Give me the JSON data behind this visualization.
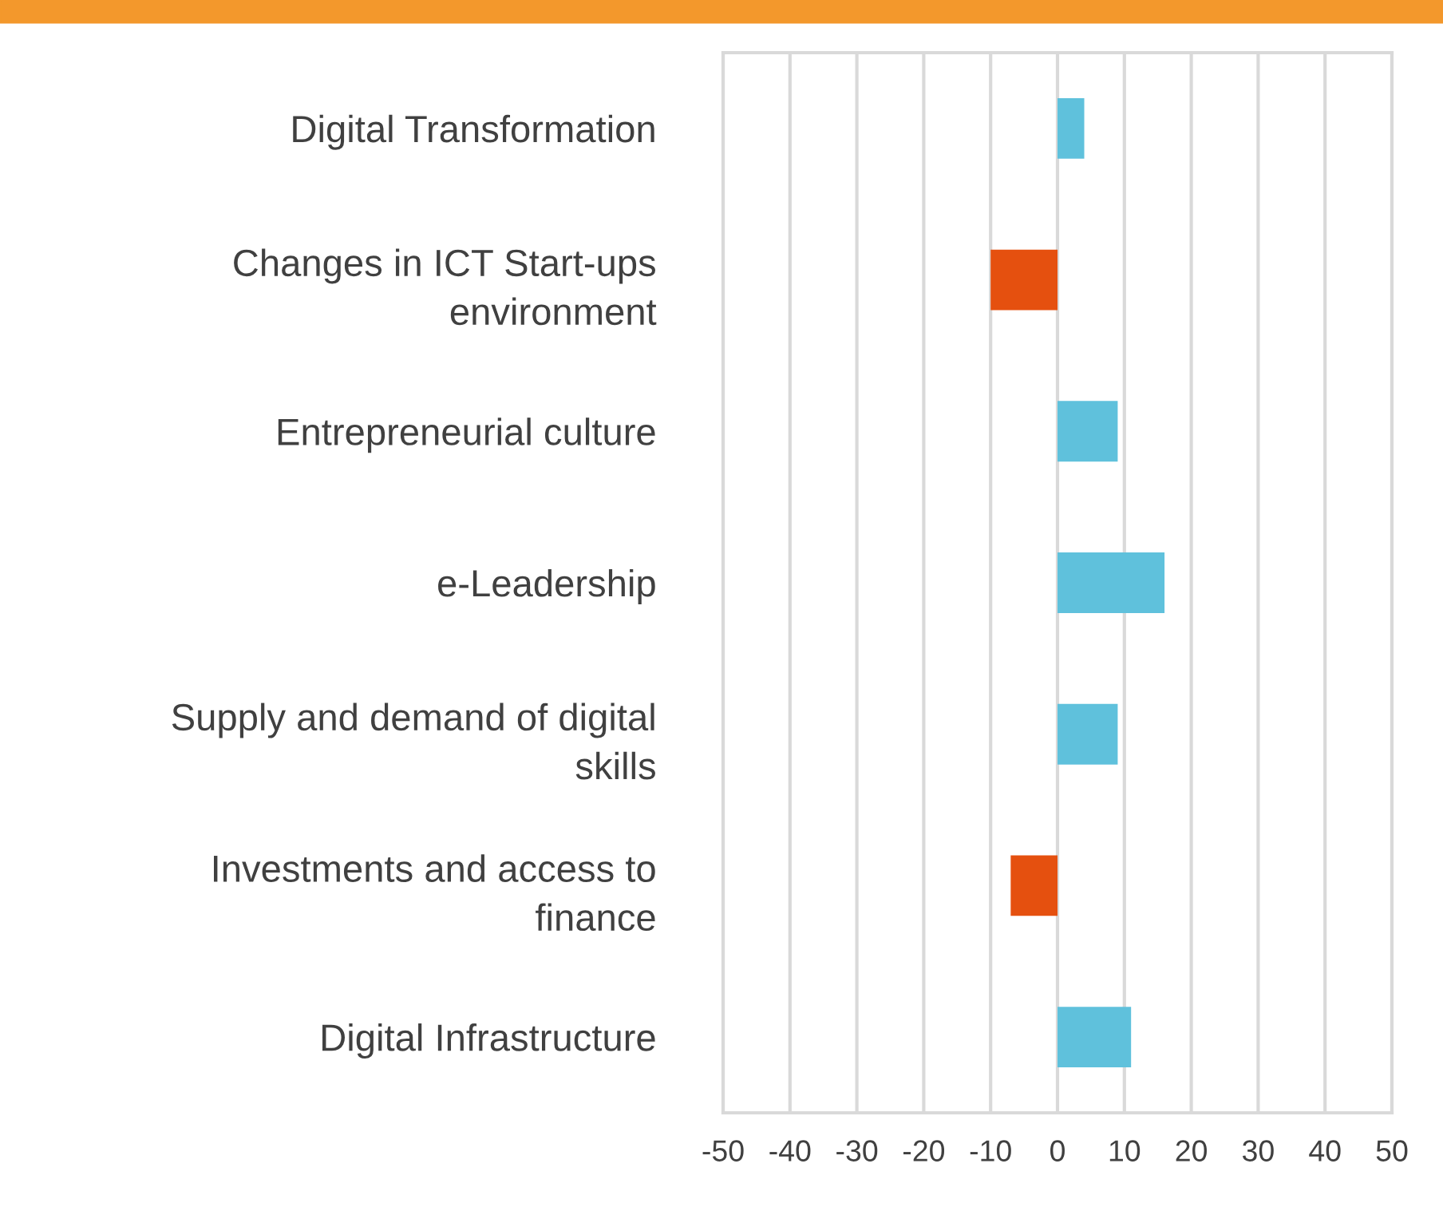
{
  "chart_data": {
    "type": "bar",
    "orientation": "horizontal",
    "categories": [
      "Digital Transformation",
      "Changes in ICT Start-ups\nenvironment",
      "Entrepreneurial culture",
      "e-Leadership",
      "Supply and demand of digital\nskills",
      "Investments and access to\nfinance",
      "Digital Infrastructure"
    ],
    "values": [
      4,
      -10,
      9,
      16,
      9,
      -7,
      11
    ],
    "colors": [
      "#5fc1dc",
      "#e5500f",
      "#5fc1dc",
      "#5fc1dc",
      "#5fc1dc",
      "#e5500f",
      "#5fc1dc"
    ],
    "xlim": [
      -50,
      50
    ],
    "xticks": [
      -50,
      -40,
      -30,
      -20,
      -10,
      0,
      10,
      20,
      30,
      40,
      50
    ],
    "grid": "x"
  }
}
